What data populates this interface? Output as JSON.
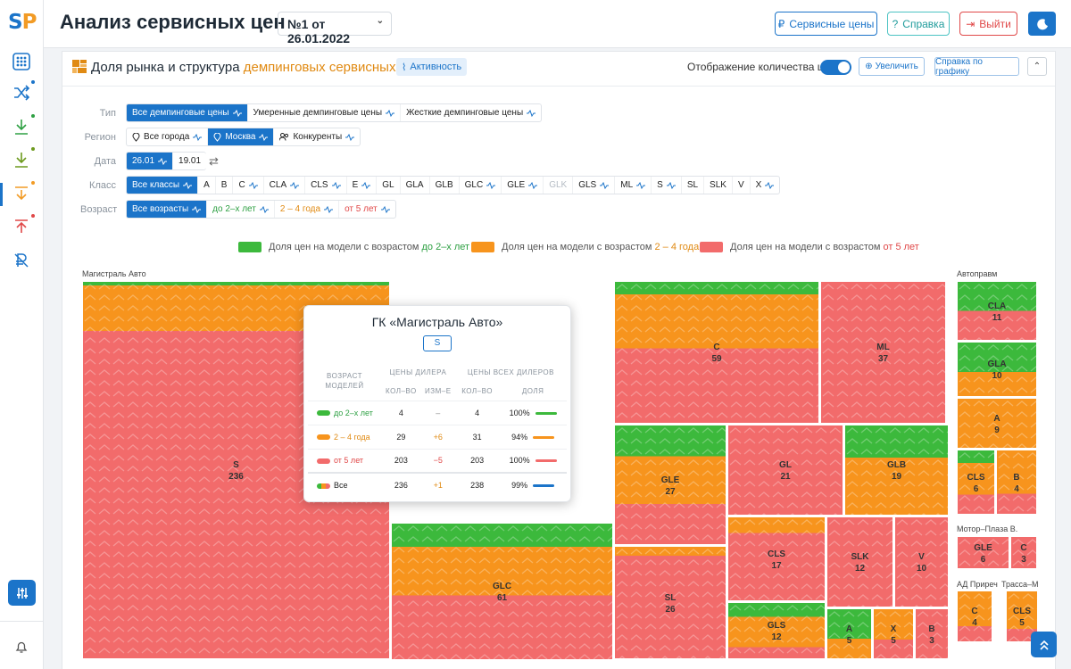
{
  "app": {
    "logo": "SP",
    "title": "Анализ сервисных цен",
    "report": "№1 от 26.01.2022"
  },
  "toolbar": {
    "prices": "Сервисные цены",
    "help": "Справка",
    "logout": "Выйти"
  },
  "panel": {
    "title_pre": "Доля рынка и структура ",
    "title_accent": "демпинговых сервисных цен",
    "activity": "Активность",
    "count_label": "Отображение количества цен",
    "zoom": "Увеличить",
    "chart_help": "Справка по графику"
  },
  "filters": {
    "type": {
      "label": "Тип",
      "items": [
        "Все демпинговые цены",
        "Умеренные демпинговые цены",
        "Жесткие демпинговые цены"
      ],
      "active": 0
    },
    "region": {
      "label": "Регион",
      "items": [
        "Все города",
        "Москва",
        "Конкуренты"
      ],
      "active": 1
    },
    "date": {
      "label": "Дата",
      "items": [
        "26.01",
        "19.01"
      ],
      "active": 0
    },
    "class": {
      "label": "Класс",
      "items": [
        "Все классы",
        "A",
        "B",
        "C",
        "CLA",
        "CLS",
        "E",
        "GL",
        "GLA",
        "GLB",
        "GLC",
        "GLE",
        "GLK",
        "GLS",
        "ML",
        "S",
        "SL",
        "SLK",
        "V",
        "X"
      ],
      "active": 0
    },
    "age": {
      "label": "Возраст",
      "items": [
        "Все возрасты",
        "до 2–х лет",
        "2 – 4 года",
        "от 5 лет"
      ],
      "active": 0
    }
  },
  "legend": [
    {
      "pre": "Доля цен на модели с возрастом ",
      "accent": "до 2–х лет",
      "color": "#3cb93c"
    },
    {
      "pre": "Доля цен на модели с возрастом ",
      "accent": "2 – 4 года",
      "color": "#f7941d"
    },
    {
      "pre": "Доля цен на модели с возрастом ",
      "accent": "от 5 лет",
      "color": "#f26b6b"
    }
  ],
  "colors": {
    "green": "#3cb93c",
    "orange": "#f7941d",
    "red": "#f26b6b",
    "blue": "#1b74c9"
  },
  "treemap": {
    "groups": [
      "Магистраль Авто",
      "Автоправм",
      "Мотор–Плаза В.",
      "АД Приреч",
      "Трасса–М"
    ],
    "tiles": [
      {
        "name": "S",
        "value": 236
      },
      {
        "name": "GLC",
        "value": 61
      },
      {
        "name": "C",
        "value": 59
      },
      {
        "name": "ML",
        "value": 37
      },
      {
        "name": "GLE",
        "value": 27
      },
      {
        "name": "SL",
        "value": 26
      },
      {
        "name": "GL",
        "value": 21
      },
      {
        "name": "GLB",
        "value": 19
      },
      {
        "name": "CLS",
        "value": 17
      },
      {
        "name": "SLK",
        "value": 12
      },
      {
        "name": "GLS",
        "value": 12
      },
      {
        "name": "V",
        "value": 10
      },
      {
        "name": "A",
        "value": 5
      },
      {
        "name": "X",
        "value": 5
      },
      {
        "name": "B",
        "value": 3
      },
      {
        "name": "CLA",
        "value": 11
      },
      {
        "name": "GLA",
        "value": 10
      },
      {
        "name": "A",
        "value": 9
      },
      {
        "name": "CLS",
        "value": 6
      },
      {
        "name": "B",
        "value": 4
      },
      {
        "name": "GLE",
        "value": 6
      },
      {
        "name": "C",
        "value": 3
      },
      {
        "name": "C",
        "value": 4
      },
      {
        "name": "CLS",
        "value": 5
      }
    ]
  },
  "tooltip": {
    "title": "ГК «Магистраль Авто»",
    "model": "S",
    "head": {
      "age": "ВОЗРАСТ МОДЕЛЕЙ",
      "dealer": "ЦЕНЫ ДИЛЕРА",
      "all": "ЦЕНЫ ВСЕХ ДИЛЕРОВ",
      "cnt": "КОЛ–ВО",
      "chg": "ИЗМ–Е",
      "cnt2": "КОЛ–ВО",
      "share": "ДОЛЯ"
    },
    "rows": [
      {
        "label": "до 2–х лет",
        "cnt": "4",
        "chg": "–",
        "all": "4",
        "share": "100%"
      },
      {
        "label": "2 – 4 года",
        "cnt": "29",
        "chg": "+6",
        "all": "31",
        "share": "94%"
      },
      {
        "label": "от 5 лет",
        "cnt": "203",
        "chg": "−5",
        "all": "203",
        "share": "100%"
      },
      {
        "label": "Все",
        "cnt": "236",
        "chg": "+1",
        "all": "238",
        "share": "99%"
      }
    ]
  }
}
